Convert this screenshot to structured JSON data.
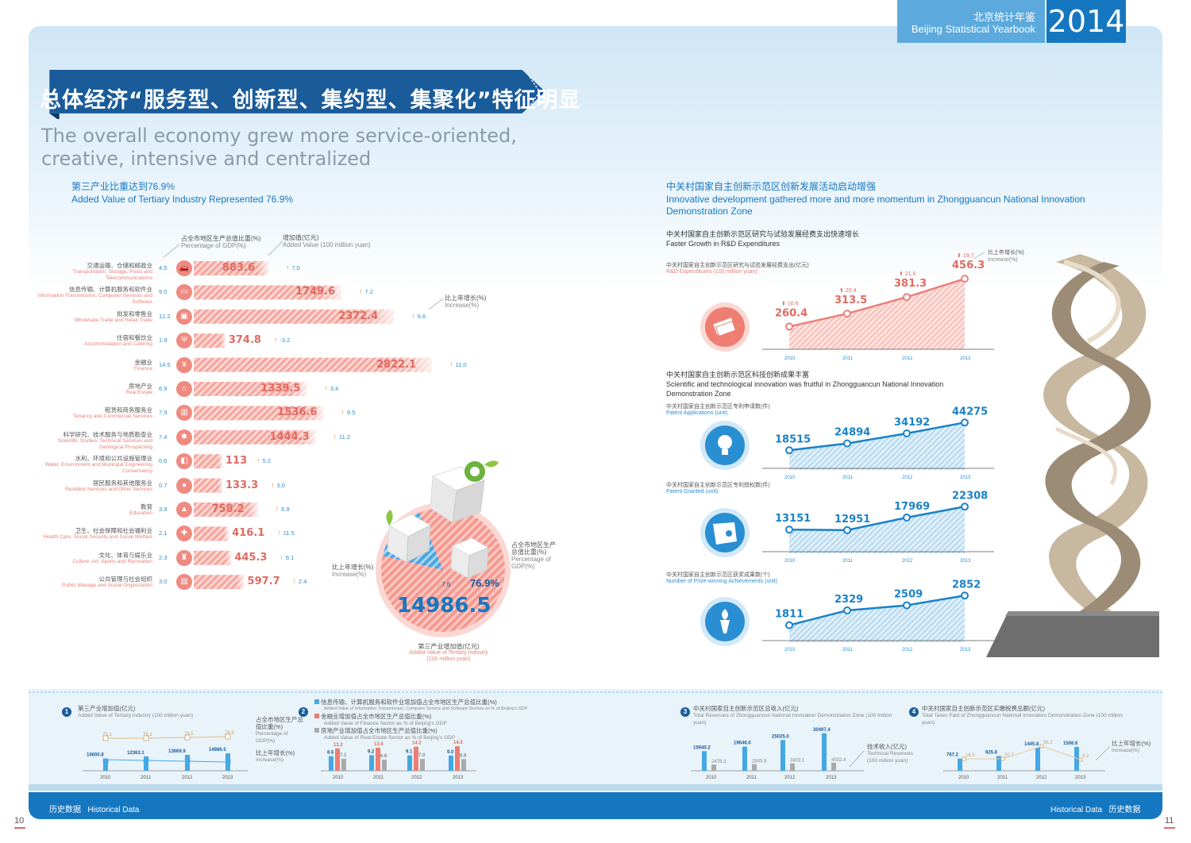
{
  "header": {
    "yearbook_cn": "北京统计年鉴",
    "yearbook_en": "Beijing Statistical Yearbook",
    "year": "2014"
  },
  "title": {
    "cn": "总体经济“服务型、创新型、集约型、集聚化”特征明显",
    "en": "The overall economy grew more service-oriented, creative, intensive and centralized"
  },
  "left_section": {
    "title_cn": "第三产业比重达到76.9%",
    "title_en": "Added Value of Tertiary Industry Represented 76.9%",
    "legend_pct_cn": "占全市地区生产总值比重(%)",
    "legend_pct_en": "Percentage of GDP(%)",
    "legend_val_cn": "增加值(亿元)",
    "legend_val_en": "Added Value (100 million yuan)",
    "legend_inc_cn": "比上年增长(%)",
    "legend_inc_en": "Increase(%)",
    "donut": {
      "total": "14986.5",
      "pct": "76.9%",
      "inc": "7.6",
      "label_cn": "第三产业增加值(亿元)",
      "label_en": "Added Value of Tertiary Industry",
      "label_unit": "(100 million yuan)",
      "inc_label_cn": "比上年增长(%)",
      "inc_label_en": "Increase(%)",
      "pct_label_cn": "占全市地区生产总值比重(%)",
      "pct_label_en": "Percentage of GDP(%)"
    }
  },
  "chart_data": [
    {
      "type": "bar",
      "title": "第三产业比重达到76.9%",
      "categories": [
        "交通运输、仓储和邮政业",
        "信息传输、计算机服务和软件业",
        "批发和零售业",
        "住宿和餐饮业",
        "金融业",
        "房地产业",
        "租赁和商务服务业",
        "科学研究、技术服务与地质勘查业",
        "水利、环境和公共设施管理业",
        "居民服务和其他服务业",
        "教育",
        "卫生、社会保障和社会福利业",
        "文化、体育与娱乐业",
        "公共管理与社会组织"
      ],
      "categories_en": [
        "Transportation, Storage, Posts and Telecommunications",
        "Information Transmission, Computer Services and Software",
        "Wholesale Trade and Retail Trade",
        "Accommodation and Catering",
        "Finance",
        "Real Estate",
        "Tenancy and Commercial Services",
        "Scientific Studies, Technical Services and Geological Prospecting",
        "Water, Environment and Municipal Engineering Conservancy",
        "Resident Services and Other Services",
        "Education",
        "Health Care, Social Security and Social Welfare",
        "Culture, Art, Sports and Recreation",
        "Public Manage and Social Organization"
      ],
      "pct_gdp": [
        "4.5",
        "9.0",
        "12.2",
        "1.9",
        "14.5",
        "6.9",
        "7.9",
        "7.4",
        "0.6",
        "0.7",
        "3.9",
        "2.1",
        "2.3",
        "3.0"
      ],
      "values": [
        883.6,
        1749.6,
        2372.4,
        374.8,
        2822.1,
        1339.5,
        1536.6,
        1444.3,
        113,
        133.3,
        758.2,
        416.1,
        445.3,
        597.7
      ],
      "labels": [
        "883.6",
        "1749.6",
        "2372.4",
        "374.8",
        "2822.1",
        "1339.5",
        "1536.6",
        "1444.3",
        "113",
        "133.3",
        "758.2",
        "416.1",
        "445.3",
        "597.7"
      ],
      "increase": [
        "7.0",
        "7.2",
        "6.6",
        "-3.2",
        "11.0",
        "3.4",
        "9.5",
        "11.2",
        "5.2",
        "3.0",
        "6.9",
        "11.5",
        "6.1",
        "2.4"
      ],
      "icons": [
        "car-icon",
        "computer-icon",
        "bag-icon",
        "fork-knife-icon",
        "yuan-icon",
        "house-icon",
        "building-icon",
        "microscope-icon",
        "truck-icon",
        "person-icon",
        "mortarboard-icon",
        "cross-icon",
        "theatre-icon",
        "stack-icon"
      ]
    },
    {
      "type": "line",
      "id": "rd",
      "title_cn": "中关村国家自主创新示范区研究与试验发展经费支出快速增长",
      "title_en": "Faster Growth in R&D Expenditures",
      "label_cn": "中关村国家自主创新示范区研究与试验发展经费支出(亿元)",
      "label_en": "R&D Expenditures (100 million yuan)",
      "inc_label_cn": "比上年增长(%)",
      "inc_label_en": "Increase(%)",
      "x": [
        "2010",
        "2011",
        "2012",
        "2013"
      ],
      "values": [
        260.4,
        313.5,
        381.3,
        456.3
      ],
      "labels": [
        "260.4",
        "313.5",
        "381.3",
        "456.3"
      ],
      "increase": [
        "10.6",
        "20.4",
        "21.6",
        "19.7"
      ],
      "color": "#e9807a"
    },
    {
      "type": "line",
      "id": "pa",
      "section_cn": "中关村国家自主创新示范区科技创新成果丰富",
      "section_en": "Scientific and technological innovation was fruitful in Zhongguancun National Innovation Demonstration Zone",
      "label_cn": "中关村国家自主创新示范区专利申请数(件)",
      "label_en": "Patent Applications (unit)",
      "x": [
        "2010",
        "2011",
        "2012",
        "2013"
      ],
      "values": [
        18515,
        24894,
        34192,
        44275
      ],
      "labels": [
        "18515",
        "24894",
        "34192",
        "44275"
      ],
      "color": "#1a82c8"
    },
    {
      "type": "line",
      "id": "pg",
      "label_cn": "中关村国家自主创新示范区专利授权数(件)",
      "label_en": "Patent Granted (unit)",
      "x": [
        "2010",
        "2011",
        "2012",
        "2013"
      ],
      "values": [
        13151,
        12951,
        17969,
        22308
      ],
      "labels": [
        "13151",
        "12951",
        "17969",
        "22308"
      ],
      "color": "#1a82c8"
    },
    {
      "type": "line",
      "id": "pw",
      "label_cn": "中关村国家自主创新示范区获奖成果数(个)",
      "label_en": "Number of Prize-winning Achievements (unit)",
      "x": [
        "2010",
        "2011",
        "2012",
        "2013"
      ],
      "values": [
        1811,
        2329,
        2509,
        2852
      ],
      "labels": [
        "1811",
        "2329",
        "2509",
        "2852"
      ],
      "color": "#1a82c8"
    },
    {
      "type": "bar",
      "id": "h1",
      "label_cn": "第三产业增加值(亿元)",
      "label_en": "Added Value of Tertiary Industry (100 million yuan)",
      "x": [
        "2010",
        "2011",
        "2012",
        "2013"
      ],
      "values": [
        10600.8,
        12363.1,
        13669.9,
        14986.5
      ],
      "labels": [
        "10600.8",
        "12363.1",
        "13669.9",
        "14986.5"
      ],
      "pct": [
        "75.1",
        "76.1",
        "76.5",
        "76.9"
      ],
      "inc": [
        "9.3",
        "8.7",
        "7.9",
        "7.6"
      ],
      "pct_label_cn": "占全市地区生产总值比重(%)",
      "pct_label_en": "Percentage of GDP(%)",
      "inc_label_cn": "比上年增长(%)",
      "inc_label_en": "Increase(%)"
    },
    {
      "type": "bar",
      "id": "h2",
      "series": [
        {
          "name": "信息传输、计算机服务和软件业增加值占全市地区生产总值比重(%)",
          "name_en": "Added Value of Information Transmission, Computer Service and Software Sectors as % of Beijing's GDP",
          "values": [
            8.6,
            9.2,
            9.1,
            9.0
          ]
        },
        {
          "name": "金融业增加值占全市地区生产总值比重(%)",
          "name_en": "Added Value of Finance Sector as % of Beijing's GDP",
          "values": [
            13.2,
            13.6,
            14.2,
            14.5
          ]
        },
        {
          "name": "房地产业增加值占全市地区生产总值比重(%)",
          "name_en": "Added Value of Real Estate Sector as % of Beijing's GDP",
          "values": [
            7.1,
            6.6,
            7.0,
            6.9
          ]
        }
      ],
      "x": [
        "2010",
        "2011",
        "2012",
        "2013"
      ]
    },
    {
      "type": "bar",
      "id": "h3",
      "label_cn": "中关村国家自主创新示范区总收入(亿元)",
      "label_en": "Total Revenues of Zhongguancun National Innovation Demonstration Zone (100 million yuan)",
      "x": [
        "2010",
        "2011",
        "2012",
        "2013"
      ],
      "series": [
        {
          "name": "总收入",
          "values": [
            15940.2,
            19646.0,
            25025.0,
            30497.4
          ],
          "labels": [
            "15940.2",
            "19646.0",
            "25025.0",
            "30497.4"
          ]
        },
        {
          "name": "技术收入(亿元)",
          "name_en": "Technical Revenues (100 million yuan)",
          "values": [
            2478.3,
            2845.9,
            3403.1,
            4032.4
          ],
          "labels": [
            "2478.3",
            "2845.9",
            "3403.1",
            "4032.4"
          ]
        }
      ]
    },
    {
      "type": "bar",
      "id": "h4",
      "label_cn": "中关村国家自主创新示范区实缴税费总额(亿元)",
      "label_en": "Total Taxes Paid of Zhongguancun National Innovation Demonstration Zone (100 million yuan)",
      "x": [
        "2010",
        "2011",
        "2012",
        "2013"
      ],
      "values": [
        767.2,
        925.8,
        1445.8,
        1506.6
      ],
      "labels": [
        "767.2",
        "925.8",
        "1445.8",
        "1506.6"
      ],
      "inc": [
        "16.5",
        "20.7",
        "56.2",
        "4.2"
      ],
      "inc_label_cn": "比上年增长(%)",
      "inc_label_en": "Increase(%)"
    }
  ],
  "right_section": {
    "title_cn": "中关村国家自主创新示范区创新发展活动启动增强",
    "title_en": "Innovative development gathered more and more momentum in Zhongguancun National Innovation Demonstration Zone"
  },
  "footer": {
    "left_cn": "历史数据",
    "left_en": "Historical Data",
    "right_en": "Historical Data",
    "right_cn": "历史数据",
    "page_left": "10",
    "page_right": "11"
  }
}
